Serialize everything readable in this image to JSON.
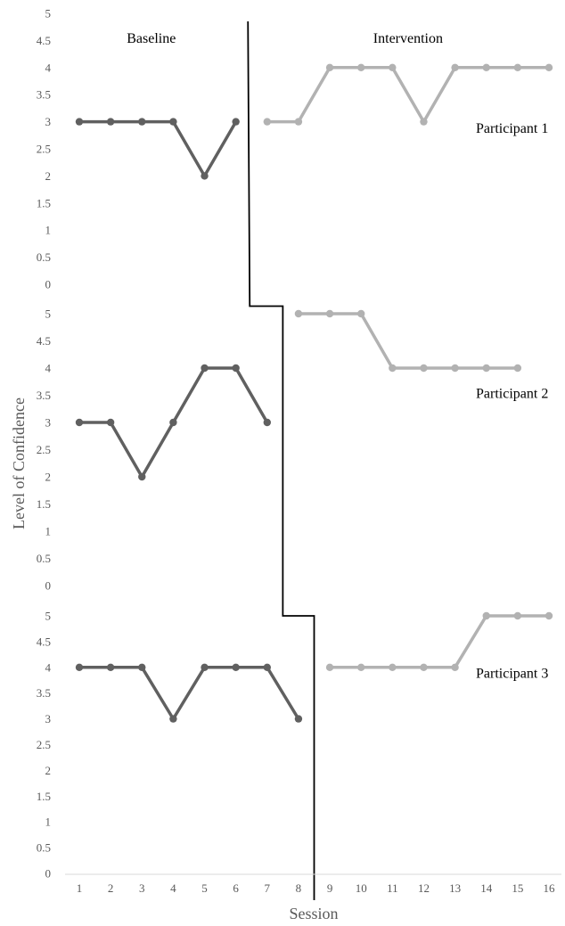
{
  "chart_data": {
    "type": "line",
    "chart_kind": "multiple-baseline single-case design",
    "ylabel": "Level of Confidence",
    "xlabel": "Session",
    "phase_labels": [
      "Baseline",
      "Intervention"
    ],
    "x_ticks": [
      "1",
      "2",
      "3",
      "4",
      "5",
      "6",
      "7",
      "8",
      "9",
      "10",
      "11",
      "12",
      "13",
      "14",
      "15",
      "16"
    ],
    "y_ticks": [
      "0",
      "0.5",
      "1",
      "1.5",
      "2",
      "2.5",
      "3",
      "3.5",
      "4",
      "4.5",
      "5"
    ],
    "ylim": [
      0,
      5
    ],
    "xlim": [
      1,
      16
    ],
    "grid": false,
    "colors": {
      "baseline": "#606060",
      "intervention": "#b2b2b2",
      "phase_line": "#000000",
      "tick_text": "#595959"
    },
    "phase_change_after_session": [
      6.5,
      7.5,
      8.5
    ],
    "panels": [
      {
        "label": "Participant 1",
        "baseline": {
          "x": [
            1,
            2,
            3,
            4,
            5,
            6
          ],
          "y": [
            3,
            3,
            3,
            3,
            2,
            3
          ]
        },
        "intervention": {
          "x": [
            7,
            8,
            9,
            10,
            11,
            12,
            13,
            14,
            15,
            16
          ],
          "y": [
            3,
            3,
            4,
            4,
            4,
            3,
            4,
            4,
            4,
            4
          ]
        }
      },
      {
        "label": "Participant 2",
        "baseline": {
          "x": [
            1,
            2,
            3,
            4,
            5,
            6,
            7
          ],
          "y": [
            3,
            3,
            2,
            3,
            4,
            4,
            3
          ]
        },
        "intervention": {
          "x": [
            8,
            9,
            10,
            11,
            12,
            13,
            14,
            15
          ],
          "y": [
            5,
            5,
            5,
            4,
            4,
            4,
            4,
            4
          ]
        }
      },
      {
        "label": "Participant 3",
        "baseline": {
          "x": [
            1,
            2,
            3,
            4,
            5,
            6,
            7,
            8
          ],
          "y": [
            4,
            4,
            4,
            3,
            4,
            4,
            4,
            3
          ]
        },
        "intervention": {
          "x": [
            9,
            10,
            11,
            12,
            13,
            14,
            15,
            16
          ],
          "y": [
            4,
            4,
            4,
            4,
            4,
            5,
            5,
            5
          ]
        }
      }
    ]
  }
}
